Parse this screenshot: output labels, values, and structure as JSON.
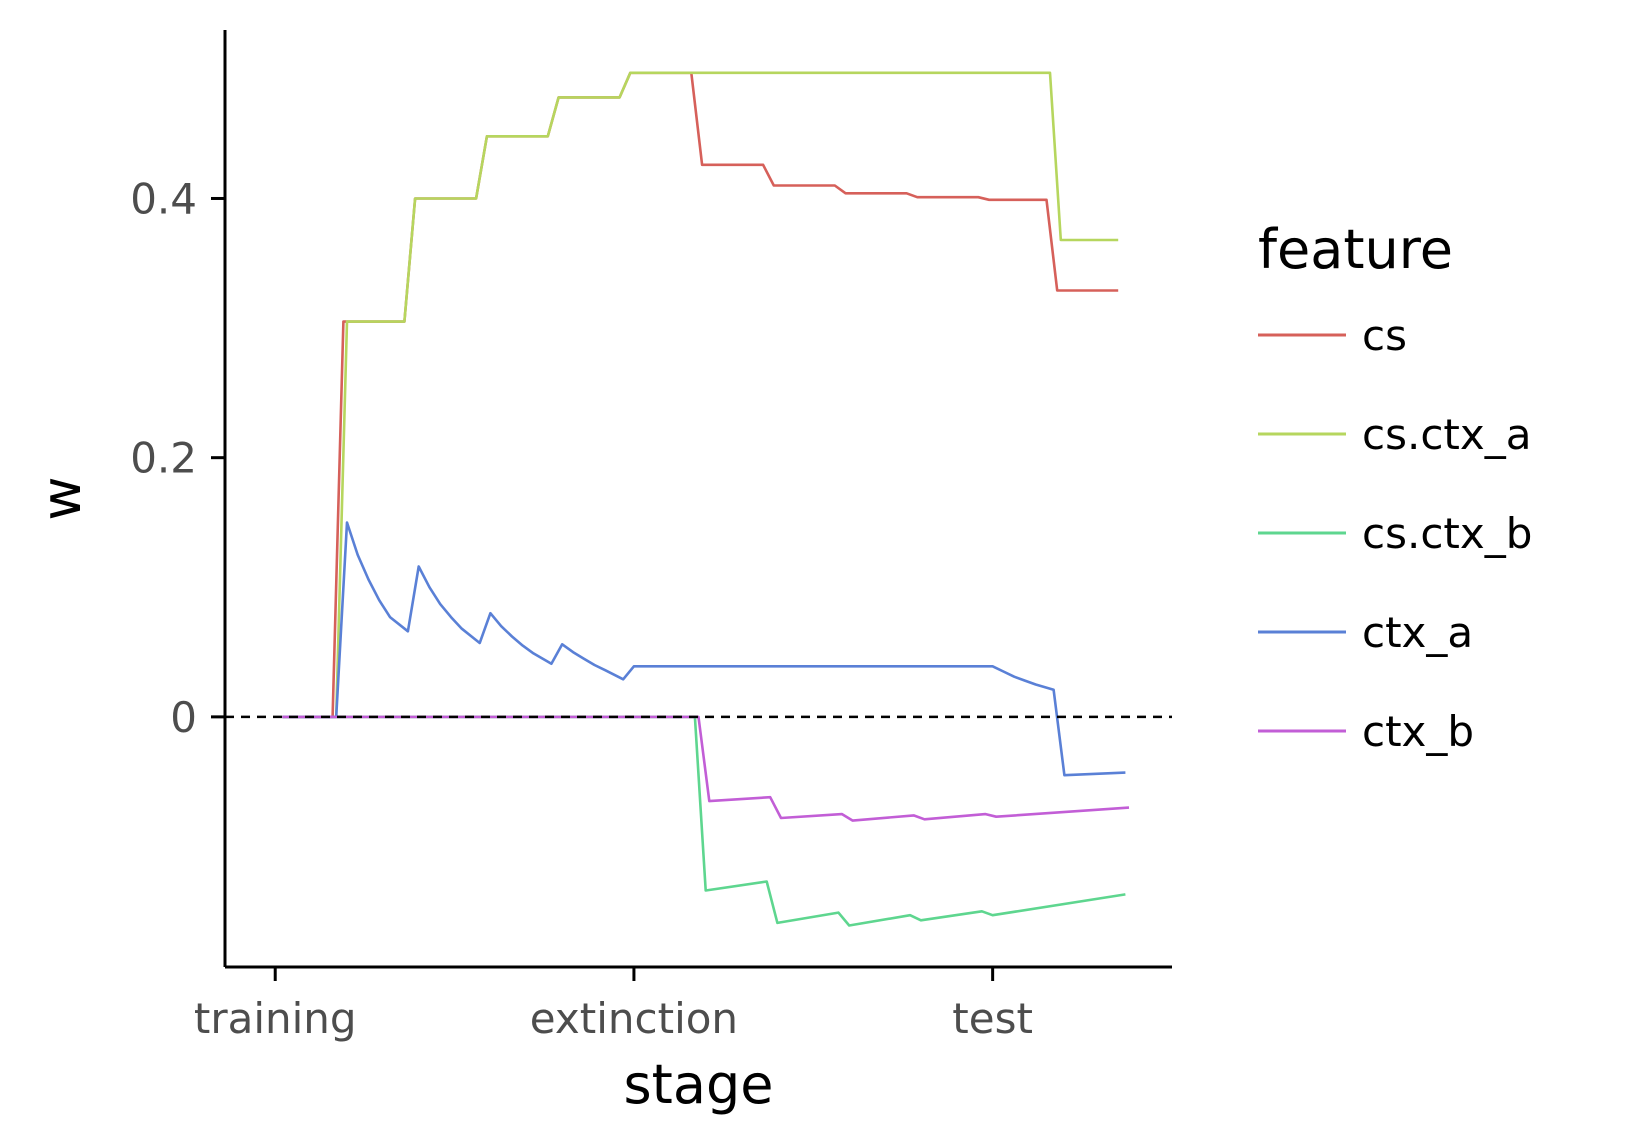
{
  "chart_data": {
    "type": "line",
    "xlabel": "stage",
    "ylabel": "w",
    "ylim": [
      -0.193,
      0.53
    ],
    "x_categories": [
      "training",
      "extinction",
      "test"
    ],
    "x_range": [
      -0.14,
      2.5
    ],
    "y_ticks": [
      {
        "value": 0,
        "label": "0"
      },
      {
        "value": 0.2,
        "label": "0.2"
      },
      {
        "value": 0.4,
        "label": "0.4"
      }
    ],
    "reference_line": {
      "y": 0,
      "style": "dashed"
    },
    "legend": {
      "title": "feature",
      "position": "right"
    },
    "grid": false,
    "series": [
      {
        "name": "cs",
        "color": "#d6605a",
        "points": [
          [
            0.02,
            0
          ],
          [
            0.16,
            0
          ],
          [
            0.19,
            0.305
          ],
          [
            0.36,
            0.305
          ],
          [
            0.39,
            0.4
          ],
          [
            0.56,
            0.4
          ],
          [
            0.59,
            0.448
          ],
          [
            0.76,
            0.448
          ],
          [
            0.79,
            0.478
          ],
          [
            0.96,
            0.478
          ],
          [
            0.99,
            0.497
          ],
          [
            1.16,
            0.497
          ],
          [
            1.19,
            0.426
          ],
          [
            1.36,
            0.426
          ],
          [
            1.39,
            0.41
          ],
          [
            1.56,
            0.41
          ],
          [
            1.59,
            0.404
          ],
          [
            1.76,
            0.404
          ],
          [
            1.79,
            0.401
          ],
          [
            1.96,
            0.401
          ],
          [
            1.99,
            0.399
          ],
          [
            2.15,
            0.399
          ],
          [
            2.18,
            0.329
          ],
          [
            2.35,
            0.329
          ]
        ]
      },
      {
        "name": "cs.ctx_a",
        "color": "#b6d65e",
        "points": [
          [
            0.02,
            0
          ],
          [
            0.17,
            0
          ],
          [
            0.2,
            0.305
          ],
          [
            0.36,
            0.305
          ],
          [
            0.39,
            0.4
          ],
          [
            0.56,
            0.4
          ],
          [
            0.59,
            0.448
          ],
          [
            0.76,
            0.448
          ],
          [
            0.79,
            0.478
          ],
          [
            0.96,
            0.478
          ],
          [
            0.99,
            0.497
          ],
          [
            2.16,
            0.497
          ],
          [
            2.19,
            0.368
          ],
          [
            2.35,
            0.368
          ]
        ]
      },
      {
        "name": "cs.ctx_b",
        "color": "#5ed68f",
        "points": [
          [
            0.02,
            0
          ],
          [
            1.17,
            0
          ],
          [
            1.2,
            -0.134
          ],
          [
            1.37,
            -0.127
          ],
          [
            1.4,
            -0.159
          ],
          [
            1.57,
            -0.151
          ],
          [
            1.6,
            -0.161
          ],
          [
            1.77,
            -0.153
          ],
          [
            1.8,
            -0.157
          ],
          [
            1.97,
            -0.15
          ],
          [
            2.0,
            -0.153
          ],
          [
            2.37,
            -0.137
          ]
        ]
      },
      {
        "name": "ctx_a",
        "color": "#5a80d6",
        "points": [
          [
            0.02,
            0
          ],
          [
            0.17,
            0
          ],
          [
            0.2,
            0.15
          ],
          [
            0.23,
            0.125
          ],
          [
            0.26,
            0.106
          ],
          [
            0.29,
            0.09
          ],
          [
            0.32,
            0.077
          ],
          [
            0.37,
            0.066
          ],
          [
            0.4,
            0.116
          ],
          [
            0.43,
            0.1
          ],
          [
            0.46,
            0.087
          ],
          [
            0.49,
            0.077
          ],
          [
            0.52,
            0.068
          ],
          [
            0.57,
            0.057
          ],
          [
            0.6,
            0.08
          ],
          [
            0.63,
            0.07
          ],
          [
            0.66,
            0.062
          ],
          [
            0.69,
            0.055
          ],
          [
            0.72,
            0.049
          ],
          [
            0.77,
            0.041
          ],
          [
            0.8,
            0.056
          ],
          [
            0.83,
            0.05
          ],
          [
            0.86,
            0.045
          ],
          [
            0.89,
            0.04
          ],
          [
            0.92,
            0.036
          ],
          [
            0.97,
            0.029
          ],
          [
            1.0,
            0.039
          ],
          [
            2.0,
            0.039
          ],
          [
            2.03,
            0.035
          ],
          [
            2.06,
            0.031
          ],
          [
            2.09,
            0.028
          ],
          [
            2.12,
            0.025
          ],
          [
            2.17,
            0.021
          ],
          [
            2.2,
            -0.045
          ],
          [
            2.37,
            -0.043
          ]
        ]
      },
      {
        "name": "ctx_b",
        "color": "#c25ed6",
        "points": [
          [
            0.02,
            0
          ],
          [
            1.18,
            0
          ],
          [
            1.21,
            -0.065
          ],
          [
            1.38,
            -0.062
          ],
          [
            1.41,
            -0.078
          ],
          [
            1.58,
            -0.075
          ],
          [
            1.61,
            -0.08
          ],
          [
            1.78,
            -0.076
          ],
          [
            1.81,
            -0.079
          ],
          [
            1.98,
            -0.075
          ],
          [
            2.01,
            -0.077
          ],
          [
            2.38,
            -0.07
          ]
        ]
      }
    ]
  }
}
